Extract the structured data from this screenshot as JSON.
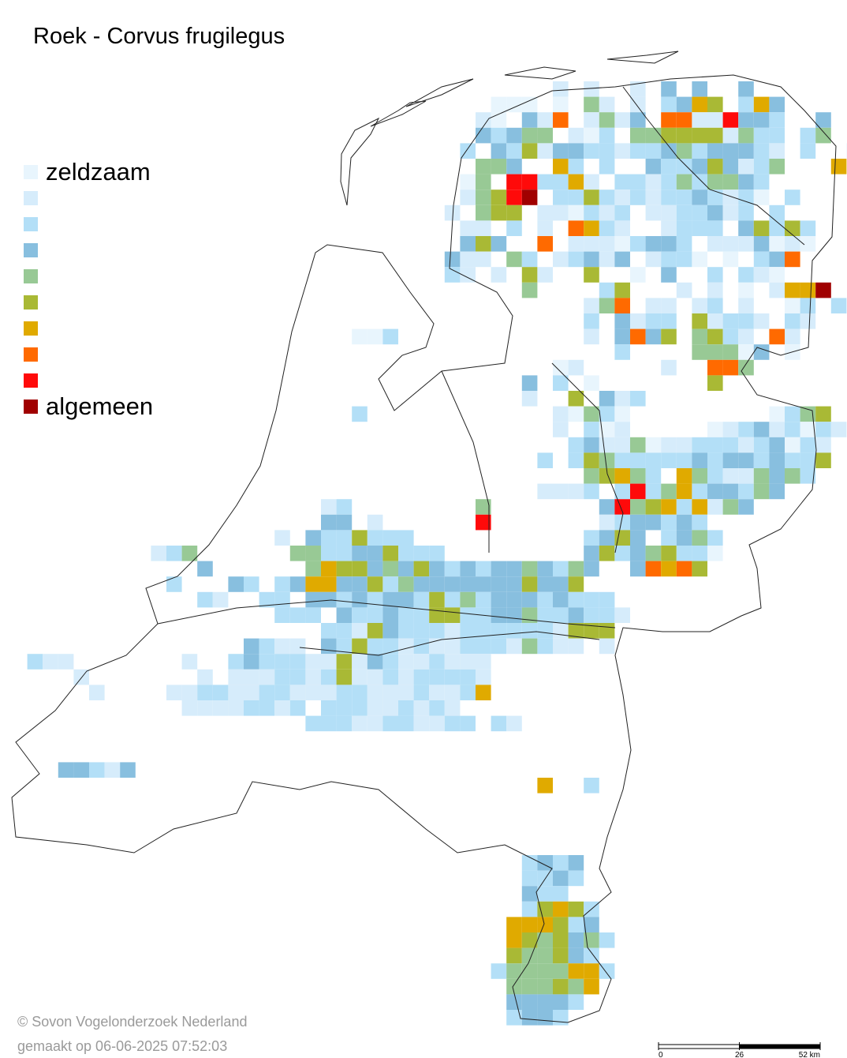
{
  "title": "Roek - Corvus frugilegus",
  "legend": [
    {
      "label": "zeldzaam",
      "color": "#e8f5fd"
    },
    {
      "label": null,
      "color": "#d6ecfb"
    },
    {
      "label": null,
      "color": "#b3dff7"
    },
    {
      "label": null,
      "color": "#88bfdf"
    },
    {
      "label": null,
      "color": "#98c995"
    },
    {
      "label": null,
      "color": "#a9b935"
    },
    {
      "label": null,
      "color": "#e0aa00"
    },
    {
      "label": null,
      "color": "#ff6a00"
    },
    {
      "label": null,
      "color": "#ff0a0a"
    },
    {
      "label": "algemeen",
      "color": "#a00000"
    }
  ],
  "grid": [
    [
      0,
      35,
      [
        2,
        null,
        2,
        null,
        null,
        2,
        null,
        4,
        null,
        4,
        null,
        null,
        4
      ]
    ],
    [
      1,
      31,
      [
        1,
        1,
        1,
        null,
        1,
        null,
        5,
        2,
        null,
        2,
        null,
        3,
        4,
        7,
        6,
        null,
        3,
        7,
        4
      ]
    ],
    [
      2,
      30,
      [
        2,
        1,
        null,
        4,
        2,
        8,
        null,
        2,
        5,
        2,
        4,
        null,
        8,
        8,
        2,
        2,
        9,
        4,
        4,
        3,
        null,
        null,
        4
      ]
    ],
    [
      3,
      30,
      [
        4,
        3,
        4,
        5,
        5,
        null,
        2,
        1,
        3,
        null,
        5,
        5,
        6,
        6,
        6,
        6,
        2,
        5,
        3,
        3,
        null,
        3,
        5
      ]
    ],
    [
      4,
      29,
      [
        3,
        null,
        4,
        3,
        6,
        2,
        4,
        4,
        3,
        3,
        2,
        3,
        3,
        4,
        5,
        3,
        4,
        4,
        4,
        3,
        2,
        null,
        3,
        null,
        null,
        1,
        1,
        5
      ]
    ],
    [
      5,
      29,
      [
        null,
        5,
        5,
        4,
        null,
        null,
        7,
        3,
        null,
        3,
        null,
        null,
        4,
        3,
        3,
        4,
        6,
        4,
        2,
        3,
        5,
        null,
        null,
        null,
        7
      ]
    ],
    [
      6,
      29,
      [
        1,
        5,
        null,
        9,
        9,
        3,
        3,
        7,
        2,
        null,
        3,
        3,
        2,
        3,
        5,
        3,
        5,
        5,
        4,
        3
      ]
    ],
    [
      7,
      29,
      [
        2,
        5,
        6,
        9,
        10,
        null,
        3,
        3,
        6,
        3,
        2,
        3,
        2,
        3,
        3,
        4,
        3,
        2,
        3,
        1,
        null,
        3
      ]
    ],
    [
      8,
      28,
      [
        2,
        null,
        5,
        6,
        6,
        null,
        2,
        2,
        1,
        3,
        2,
        3,
        null,
        2,
        2,
        3,
        3,
        4,
        2,
        3,
        null,
        3
      ]
    ],
    [
      9,
      29,
      [
        2,
        2,
        null,
        3,
        null,
        2,
        null,
        8,
        7,
        3,
        2,
        null,
        null,
        2,
        3,
        3,
        3,
        null,
        4,
        6,
        3,
        6,
        3
      ]
    ],
    [
      10,
      29,
      [
        4,
        6,
        4,
        null,
        null,
        8,
        null,
        2,
        2,
        2,
        1,
        3,
        4,
        4,
        3,
        null,
        2,
        2,
        2,
        4,
        1,
        2,
        1
      ]
    ],
    [
      11,
      28,
      [
        4,
        2,
        2,
        null,
        5,
        3,
        null,
        2,
        3,
        4,
        2,
        4,
        null,
        2,
        3,
        3,
        1,
        null,
        1,
        null,
        3,
        4,
        8
      ]
    ],
    [
      12,
      28,
      [
        3,
        2,
        null,
        2,
        null,
        6,
        2,
        null,
        null,
        6,
        null,
        null,
        1,
        null,
        4,
        null,
        null,
        3,
        null,
        3,
        2,
        1
      ]
    ],
    [
      13,
      33,
      [
        5,
        null,
        null,
        null,
        null,
        3,
        6,
        null,
        null,
        null,
        2,
        null,
        2,
        null,
        1,
        null,
        2,
        7,
        7,
        10
      ]
    ],
    [
      14,
      36,
      [
        null,
        2,
        5,
        8,
        null,
        2,
        2,
        null,
        2,
        3,
        null,
        2,
        null,
        null,
        1,
        3,
        null,
        3
      ]
    ],
    [
      15,
      37,
      [
        3,
        null,
        4,
        2,
        3,
        3,
        null,
        6,
        2,
        3,
        3,
        2,
        null,
        3,
        2
      ]
    ],
    [
      16,
      22,
      [
        1,
        1,
        3
      ]
    ],
    [
      16,
      37,
      [
        2,
        null,
        4,
        8,
        4,
        6,
        null,
        5,
        6,
        3,
        2,
        null,
        8,
        2
      ]
    ],
    [
      17,
      37,
      [
        null,
        null,
        3,
        null,
        null,
        null,
        null,
        5,
        5,
        5,
        1,
        4,
        null,
        1
      ]
    ],
    [
      18,
      35,
      [
        1,
        2,
        null,
        null,
        null,
        null,
        null,
        2,
        null,
        null,
        8,
        8,
        5
      ]
    ],
    [
      19,
      33,
      [
        4,
        null,
        3,
        null,
        1,
        null,
        null,
        null,
        null,
        null,
        null,
        null,
        6
      ]
    ],
    [
      20,
      32,
      [
        null,
        2,
        null,
        null,
        6,
        null,
        4,
        2,
        3
      ]
    ],
    [
      21,
      22,
      [
        3,
        null,
        null,
        null,
        null,
        null,
        null,
        null,
        null,
        null,
        null,
        null,
        null,
        2,
        1,
        5,
        3,
        1
      ]
    ],
    [
      21,
      49,
      [
        1,
        3,
        5,
        6
      ]
    ],
    [
      22,
      35,
      [
        2,
        null,
        3,
        1,
        2,
        null,
        null,
        null,
        null,
        null,
        1,
        2,
        3,
        4,
        2,
        3,
        1,
        3,
        2
      ]
    ],
    [
      23,
      35,
      [
        null,
        3,
        4,
        2,
        2,
        5,
        1,
        2,
        2,
        3,
        3,
        3,
        2,
        3,
        4,
        1,
        3,
        2
      ]
    ],
    [
      24,
      34,
      [
        3,
        null,
        3,
        6,
        5,
        3,
        3,
        3,
        3,
        3,
        4,
        3,
        4,
        4,
        3,
        4,
        3,
        3,
        6
      ]
    ],
    [
      25,
      37,
      [
        5,
        6,
        7,
        5,
        3,
        null,
        7,
        5,
        3,
        2,
        2,
        5,
        4,
        5,
        3
      ]
    ],
    [
      26,
      34,
      [
        2,
        2,
        2,
        3,
        null,
        3,
        9,
        3,
        5,
        7,
        3,
        4,
        4,
        3,
        5,
        4
      ]
    ],
    [
      27,
      20,
      [
        2,
        3,
        null,
        null,
        null,
        null,
        null,
        null,
        null,
        null,
        5,
        null,
        null,
        null,
        null,
        null,
        null,
        null,
        4,
        9,
        5,
        6,
        7,
        3,
        7,
        2,
        5,
        4
      ]
    ],
    [
      28,
      20,
      [
        4,
        4,
        null,
        2,
        null,
        null,
        null,
        null,
        null,
        null,
        9,
        null,
        null,
        null,
        null,
        null,
        null,
        null,
        2,
        3,
        4,
        4,
        3,
        4,
        3
      ]
    ],
    [
      29,
      17,
      [
        2,
        null,
        4,
        3,
        3,
        6,
        3,
        3,
        3,
        null,
        null,
        null,
        null,
        null,
        null,
        null,
        null,
        null,
        null,
        null,
        3,
        4,
        6,
        4,
        null,
        3,
        4,
        5,
        3
      ]
    ],
    [
      30,
      9,
      [
        2,
        3,
        5,
        null,
        null,
        null,
        null,
        null,
        null,
        5,
        5,
        3,
        3,
        4,
        4,
        6,
        3,
        3,
        3,
        null,
        null,
        null,
        null,
        null,
        null,
        null,
        null,
        null,
        4,
        6,
        3,
        4,
        5,
        6,
        3,
        3,
        1
      ]
    ],
    [
      31,
      12,
      [
        4,
        null,
        null,
        null,
        null,
        null,
        null,
        5,
        7,
        6,
        6,
        4,
        5,
        4,
        6,
        4,
        3,
        4,
        3,
        4,
        4,
        5,
        4,
        3,
        5,
        4,
        null,
        null,
        4,
        8,
        7,
        8,
        6
      ]
    ],
    [
      32,
      10,
      [
        3,
        null,
        null,
        null,
        4,
        3,
        null,
        3,
        4,
        7,
        7,
        4,
        4,
        6,
        3,
        5,
        4,
        4,
        4,
        4,
        4,
        4,
        4,
        6,
        4,
        4,
        6
      ]
    ],
    [
      33,
      12,
      [
        3,
        2,
        null,
        null,
        3,
        3,
        null,
        4,
        4,
        3,
        4,
        3,
        4,
        4,
        3,
        6,
        3,
        5,
        3,
        4,
        4,
        4,
        3,
        4,
        3,
        3,
        3
      ]
    ],
    [
      34,
      17,
      [
        3,
        3,
        3,
        null,
        4,
        3,
        3,
        4,
        3,
        3,
        6,
        6,
        3,
        3,
        4,
        4,
        5,
        3,
        3,
        4,
        3,
        3,
        2
      ]
    ],
    [
      35,
      20,
      [
        3,
        3,
        2,
        6,
        4,
        3,
        3,
        3,
        2,
        3,
        3,
        3,
        3,
        3,
        3,
        2,
        6,
        6,
        6
      ]
    ],
    [
      36,
      15,
      [
        4,
        3,
        2,
        2,
        null,
        4,
        3,
        6,
        3,
        3,
        2,
        3,
        2,
        2,
        3,
        3,
        3,
        2,
        5,
        3,
        2,
        2,
        null,
        2
      ]
    ],
    [
      37,
      1,
      [
        3,
        2,
        2,
        null,
        null,
        null,
        null,
        null,
        null,
        null,
        2,
        null,
        null,
        3,
        4,
        3,
        3,
        3,
        2,
        2,
        6,
        2,
        4,
        3,
        2,
        2,
        3,
        2,
        2,
        2
      ]
    ],
    [
      38,
      4,
      [
        2,
        null,
        null,
        null,
        null,
        null,
        null,
        null,
        2,
        null,
        2,
        2,
        2,
        3,
        3,
        2,
        3,
        6,
        2,
        2,
        3,
        2,
        3,
        3,
        3,
        3,
        2
      ]
    ],
    [
      39,
      5,
      [
        2,
        null,
        null,
        null,
        null,
        2,
        2,
        3,
        3,
        2,
        2,
        3,
        3,
        2,
        2,
        2,
        3,
        3,
        2,
        2,
        2,
        3,
        2,
        2,
        3,
        7
      ]
    ],
    [
      40,
      11,
      [
        2,
        2,
        2,
        2,
        3,
        3,
        2,
        3,
        null,
        3,
        3,
        3,
        2,
        2,
        3,
        2,
        3,
        2
      ]
    ],
    [
      41,
      19,
      [
        3,
        3,
        3,
        2,
        2,
        3,
        3,
        2,
        2,
        3,
        3,
        null,
        3,
        2
      ]
    ],
    [
      44,
      3,
      [
        4,
        4,
        3,
        2,
        4
      ]
    ],
    [
      45,
      34,
      [
        7,
        null,
        null,
        3
      ]
    ],
    [
      50,
      33,
      [
        3,
        4,
        3,
        4
      ]
    ],
    [
      51,
      33,
      [
        3,
        3,
        4,
        3
      ]
    ],
    [
      52,
      33,
      [
        4,
        3,
        3
      ]
    ],
    [
      53,
      33,
      [
        3,
        6,
        7,
        6,
        3
      ]
    ],
    [
      54,
      32,
      [
        7,
        7,
        7,
        6,
        3,
        4
      ]
    ],
    [
      55,
      32,
      [
        7,
        6,
        5,
        6,
        4,
        5,
        3
      ]
    ],
    [
      56,
      32,
      [
        6,
        5,
        5,
        6,
        4,
        3
      ]
    ],
    [
      57,
      31,
      [
        3,
        5,
        5,
        5,
        5,
        7,
        7,
        3
      ]
    ],
    [
      58,
      32,
      [
        5,
        5,
        5,
        6,
        5,
        7
      ]
    ],
    [
      59,
      32,
      [
        4,
        4,
        4,
        4,
        3
      ]
    ],
    [
      60,
      32,
      [
        3,
        4,
        4,
        3
      ]
    ]
  ],
  "scale": {
    "lim": [
      0,
      52
    ],
    "ticks": [
      0,
      26,
      {
        "value": 52,
        "label": "52 km"
      }
    ]
  },
  "footer": {
    "copyright": "© Sovon Vogelonderzoek Nederland",
    "created": "gemaakt op 06-06-2025 07:52:03"
  }
}
